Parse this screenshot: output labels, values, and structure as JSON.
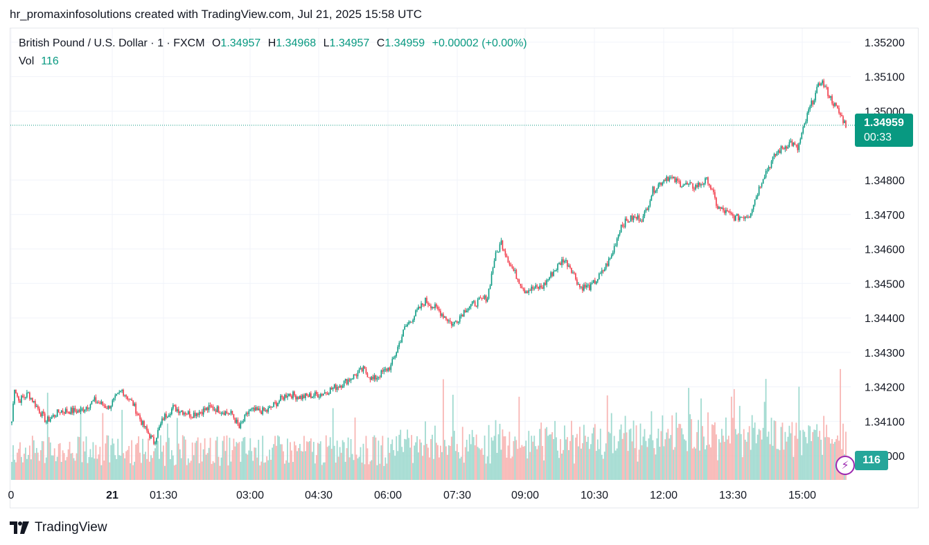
{
  "header": {
    "title": "hr_promaxinfosolutions created with TradingView.com, Jul 21, 2025 15:58 UTC"
  },
  "legend": {
    "symbol": "British Pound / U.S. Dollar · 1 · FXCM",
    "open_label": "O",
    "open": "1.34957",
    "high_label": "H",
    "high": "1.34968",
    "low_label": "L",
    "low": "1.34957",
    "close_label": "C",
    "close": "1.34959",
    "change": "+0.00002 (+0.00%)",
    "vol_label": "Vol",
    "vol": "116"
  },
  "price_tag": {
    "price": "1.34959",
    "countdown": "00:33"
  },
  "vol_tag": "116",
  "footer": {
    "brand": "TradingView"
  },
  "icons": {
    "logo": "tradingview-logo-icon",
    "bolt": "lightning-bolt-icon"
  },
  "colors": {
    "up": "#089981",
    "down": "#f23645",
    "vol_up": "#8fd3c8",
    "vol_down": "#f7a9a7"
  },
  "chart_data": {
    "type": "candlestick",
    "yaxis": {
      "min": 1.3393,
      "max": 1.3524,
      "ticks": [
        "1.34000",
        "1.34100",
        "1.34200",
        "1.34300",
        "1.34400",
        "1.34500",
        "1.34600",
        "1.34700",
        "1.34800",
        "1.35000",
        "1.35100",
        "1.35200"
      ]
    },
    "xaxis": {
      "ticks": [
        "0",
        "21",
        "01:30",
        "03:00",
        "04:30",
        "06:00",
        "07:30",
        "09:00",
        "10:30",
        "12:00",
        "13:30",
        "15:00"
      ]
    },
    "price_anchors": [
      [
        0,
        1.341
      ],
      [
        2,
        1.342
      ],
      [
        5,
        1.3416
      ],
      [
        12,
        1.3418
      ],
      [
        25,
        1.341
      ],
      [
        35,
        1.3413
      ],
      [
        50,
        1.3413
      ],
      [
        60,
        1.3416
      ],
      [
        70,
        1.3414
      ],
      [
        80,
        1.3419
      ],
      [
        88,
        1.3415
      ],
      [
        95,
        1.3409
      ],
      [
        103,
        1.3404
      ],
      [
        110,
        1.3411
      ],
      [
        117,
        1.3414
      ],
      [
        130,
        1.3412
      ],
      [
        145,
        1.3414
      ],
      [
        160,
        1.3412
      ],
      [
        165,
        1.3408
      ],
      [
        172,
        1.3413
      ],
      [
        185,
        1.3413
      ],
      [
        200,
        1.3418
      ],
      [
        210,
        1.3417
      ],
      [
        225,
        1.3418
      ],
      [
        240,
        1.3421
      ],
      [
        255,
        1.3425
      ],
      [
        262,
        1.3422
      ],
      [
        275,
        1.3426
      ],
      [
        285,
        1.3437
      ],
      [
        300,
        1.3445
      ],
      [
        310,
        1.3442
      ],
      [
        320,
        1.3438
      ],
      [
        330,
        1.3443
      ],
      [
        345,
        1.3446
      ],
      [
        350,
        1.3457
      ],
      [
        355,
        1.3462
      ],
      [
        362,
        1.3455
      ],
      [
        372,
        1.3448
      ],
      [
        385,
        1.3449
      ],
      [
        392,
        1.3453
      ],
      [
        400,
        1.3457
      ],
      [
        405,
        1.3455
      ],
      [
        412,
        1.3449
      ],
      [
        420,
        1.3449
      ],
      [
        428,
        1.3453
      ],
      [
        435,
        1.3458
      ],
      [
        442,
        1.3467
      ],
      [
        450,
        1.3469
      ],
      [
        458,
        1.3469
      ],
      [
        465,
        1.3477
      ],
      [
        475,
        1.3481
      ],
      [
        485,
        1.3479
      ],
      [
        495,
        1.3478
      ],
      [
        505,
        1.348
      ],
      [
        512,
        1.3472
      ],
      [
        525,
        1.3469
      ],
      [
        535,
        1.347
      ],
      [
        545,
        1.3481
      ],
      [
        555,
        1.3488
      ],
      [
        565,
        1.3491
      ],
      [
        570,
        1.3489
      ],
      [
        578,
        1.35
      ],
      [
        587,
        1.3509
      ],
      [
        595,
        1.3503
      ],
      [
        605,
        1.3496
      ]
    ],
    "volume_range": [
      20,
      150
    ],
    "last_volume": 116
  }
}
